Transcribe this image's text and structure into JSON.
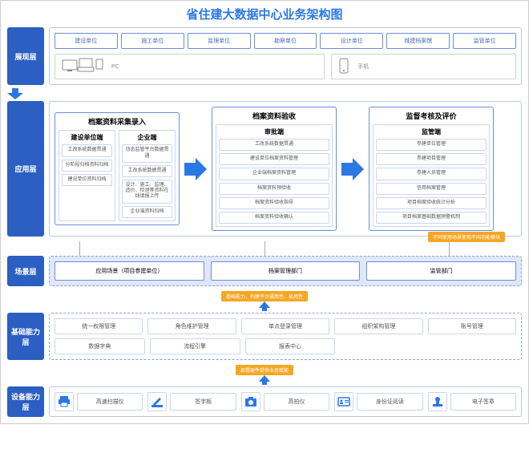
{
  "colors": {
    "title": "#2b78e4",
    "layer_label_bg": "#2b5fc1",
    "border_light": "#c9d6f0",
    "border_blue": "#6a8fd8",
    "unit_border": "#6a8fd8",
    "unit_text": "#4a6db5",
    "section_bg": "#eaf0fb",
    "scene_bg": "#dfe7f8",
    "arrow": "#2b78e4",
    "tag_orange": "#f5a623",
    "icon_blue": "#2b78e4",
    "icon_navy": "#2b4a8b",
    "body_border": "#b9c9e8"
  },
  "title": "省住建大数据中心业务架构图",
  "layers": {
    "presentation": {
      "label": "展现层",
      "units": [
        "建设单位",
        "施工单位",
        "监理单位",
        "勘察单位",
        "设计单位",
        "城建档案馆",
        "监管单位"
      ],
      "devices": {
        "pc": "PC",
        "mobile": "手机"
      }
    },
    "application": {
      "label": "应用层",
      "s1": {
        "title": "档案资料采集录入",
        "colA": {
          "title": "建设单位端",
          "items": [
            "工改系统数据贯通",
            "分阶段归档资料归档",
            "建设单位资料归档"
          ]
        },
        "colB": {
          "title": "企业端",
          "items": [
            "动态监管平台数据贯通",
            "工改系统数据贯通",
            "设计、施工、监理、造价、检测等资料在线填报上传",
            "企业端资料归档"
          ]
        }
      },
      "s2": {
        "title": "档案资料验收",
        "sub": "审批端",
        "items": [
          "工改系统数据贯通",
          "建设单位档案资料管理",
          "企业端档案资料管理",
          "档案资料预验收",
          "档案资料验收指导",
          "档案资料验收确认"
        ]
      },
      "s3": {
        "title": "监督考核及评价",
        "sub": "监管端",
        "items": [
          "参建单位管理",
          "参建项目管理",
          "参建人员管理",
          "信用档案管理",
          "项目档案验收统计分析",
          "项目档案基础数据预警机制"
        ]
      }
    },
    "scene": {
      "label": "场景层",
      "boxes": [
        "应用场景（项目参建单位）",
        "档案管理部门",
        "监管部门"
      ],
      "tag": "不同使用场景使用不同功能模块"
    },
    "basic": {
      "label": "基础能力层",
      "row1": [
        "统一权限管理",
        "角色维护管理",
        "单点登录管理",
        "组织架构管理",
        "账号管理"
      ],
      "row2": [
        "数据字典",
        "流程引擎",
        "报表中心"
      ],
      "tag": "基础能力，构建平台通用性、易用性"
    },
    "device": {
      "label": "设备能力层",
      "items": [
        {
          "icon": "printer",
          "label": "高速扫描仪"
        },
        {
          "icon": "pen",
          "label": "签字板"
        },
        {
          "icon": "camera",
          "label": "高拍仪"
        },
        {
          "icon": "idcard",
          "label": "身份证阅读"
        },
        {
          "icon": "stamp",
          "label": "电子签章"
        }
      ],
      "tag": "部署硬件提供业务赋能"
    }
  }
}
